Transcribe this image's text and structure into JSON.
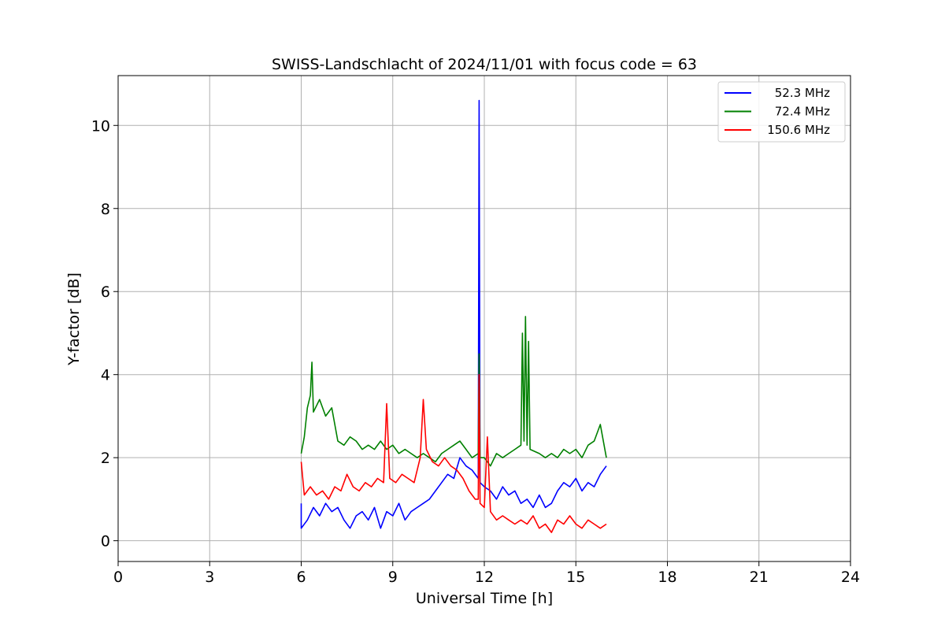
{
  "chart_data": {
    "type": "line",
    "title": "SWISS-Landschlacht of 2024/11/01 with focus code = 63",
    "xlabel": "Universal Time [h]",
    "ylabel": "Y-factor [dB]",
    "xlim": [
      0,
      24
    ],
    "ylim": [
      -0.5,
      11.2
    ],
    "xticks": [
      0,
      3,
      6,
      9,
      12,
      15,
      18,
      21,
      24
    ],
    "yticks": [
      0,
      2,
      4,
      6,
      8,
      10
    ],
    "grid": true,
    "legend_position": "top-right",
    "series": [
      {
        "name": " 52.3 MHz",
        "color": "#0000ff",
        "points": [
          [
            6.0,
            0.9
          ],
          [
            6.0,
            0.3
          ],
          [
            6.2,
            0.5
          ],
          [
            6.4,
            0.8
          ],
          [
            6.6,
            0.6
          ],
          [
            6.8,
            0.9
          ],
          [
            7.0,
            0.7
          ],
          [
            7.2,
            0.8
          ],
          [
            7.4,
            0.5
          ],
          [
            7.6,
            0.3
          ],
          [
            7.8,
            0.6
          ],
          [
            8.0,
            0.7
          ],
          [
            8.2,
            0.5
          ],
          [
            8.4,
            0.8
          ],
          [
            8.6,
            0.3
          ],
          [
            8.8,
            0.7
          ],
          [
            9.0,
            0.6
          ],
          [
            9.2,
            0.9
          ],
          [
            9.4,
            0.5
          ],
          [
            9.6,
            0.7
          ],
          [
            9.8,
            0.8
          ],
          [
            10.0,
            0.9
          ],
          [
            10.2,
            1.0
          ],
          [
            10.4,
            1.2
          ],
          [
            10.6,
            1.4
          ],
          [
            10.8,
            1.6
          ],
          [
            11.0,
            1.5
          ],
          [
            11.2,
            2.0
          ],
          [
            11.4,
            1.8
          ],
          [
            11.6,
            1.7
          ],
          [
            11.8,
            1.5
          ],
          [
            11.83,
            10.6
          ],
          [
            11.86,
            1.4
          ],
          [
            12.0,
            1.3
          ],
          [
            12.2,
            1.2
          ],
          [
            12.4,
            1.0
          ],
          [
            12.6,
            1.3
          ],
          [
            12.8,
            1.1
          ],
          [
            13.0,
            1.2
          ],
          [
            13.2,
            0.9
          ],
          [
            13.4,
            1.0
          ],
          [
            13.6,
            0.8
          ],
          [
            13.8,
            1.1
          ],
          [
            14.0,
            0.8
          ],
          [
            14.2,
            0.9
          ],
          [
            14.4,
            1.2
          ],
          [
            14.6,
            1.4
          ],
          [
            14.8,
            1.3
          ],
          [
            15.0,
            1.5
          ],
          [
            15.2,
            1.2
          ],
          [
            15.4,
            1.4
          ],
          [
            15.6,
            1.3
          ],
          [
            15.8,
            1.6
          ],
          [
            16.0,
            1.8
          ]
        ]
      },
      {
        "name": " 72.4 MHz",
        "color": "#008000",
        "points": [
          [
            6.0,
            2.1
          ],
          [
            6.1,
            2.5
          ],
          [
            6.2,
            3.2
          ],
          [
            6.3,
            3.5
          ],
          [
            6.35,
            4.3
          ],
          [
            6.4,
            3.1
          ],
          [
            6.6,
            3.4
          ],
          [
            6.8,
            3.0
          ],
          [
            7.0,
            3.2
          ],
          [
            7.2,
            2.4
          ],
          [
            7.4,
            2.3
          ],
          [
            7.6,
            2.5
          ],
          [
            7.8,
            2.4
          ],
          [
            8.0,
            2.2
          ],
          [
            8.2,
            2.3
          ],
          [
            8.4,
            2.2
          ],
          [
            8.6,
            2.4
          ],
          [
            8.8,
            2.2
          ],
          [
            9.0,
            2.3
          ],
          [
            9.2,
            2.1
          ],
          [
            9.4,
            2.2
          ],
          [
            9.6,
            2.1
          ],
          [
            9.8,
            2.0
          ],
          [
            10.0,
            2.1
          ],
          [
            10.2,
            2.0
          ],
          [
            10.4,
            1.9
          ],
          [
            10.6,
            2.1
          ],
          [
            10.8,
            2.2
          ],
          [
            11.0,
            2.3
          ],
          [
            11.2,
            2.4
          ],
          [
            11.4,
            2.2
          ],
          [
            11.6,
            2.0
          ],
          [
            11.8,
            2.1
          ],
          [
            11.83,
            4.5
          ],
          [
            11.86,
            2.0
          ],
          [
            12.0,
            2.0
          ],
          [
            12.2,
            1.8
          ],
          [
            12.4,
            2.1
          ],
          [
            12.6,
            2.0
          ],
          [
            12.8,
            2.1
          ],
          [
            13.0,
            2.2
          ],
          [
            13.2,
            2.3
          ],
          [
            13.25,
            5.0
          ],
          [
            13.3,
            2.4
          ],
          [
            13.35,
            5.4
          ],
          [
            13.4,
            2.3
          ],
          [
            13.45,
            4.8
          ],
          [
            13.5,
            2.2
          ],
          [
            13.8,
            2.1
          ],
          [
            14.0,
            2.0
          ],
          [
            14.2,
            2.1
          ],
          [
            14.4,
            2.0
          ],
          [
            14.6,
            2.2
          ],
          [
            14.8,
            2.1
          ],
          [
            15.0,
            2.2
          ],
          [
            15.2,
            2.0
          ],
          [
            15.4,
            2.3
          ],
          [
            15.6,
            2.4
          ],
          [
            15.8,
            2.8
          ],
          [
            16.0,
            2.0
          ]
        ]
      },
      {
        "name": " 150.6 MHz",
        "color": "#ff0000",
        "points": [
          [
            6.0,
            1.9
          ],
          [
            6.1,
            1.1
          ],
          [
            6.3,
            1.3
          ],
          [
            6.5,
            1.1
          ],
          [
            6.7,
            1.2
          ],
          [
            6.9,
            1.0
          ],
          [
            7.1,
            1.3
          ],
          [
            7.3,
            1.2
          ],
          [
            7.5,
            1.6
          ],
          [
            7.7,
            1.3
          ],
          [
            7.9,
            1.2
          ],
          [
            8.1,
            1.4
          ],
          [
            8.3,
            1.3
          ],
          [
            8.5,
            1.5
          ],
          [
            8.7,
            1.4
          ],
          [
            8.8,
            3.3
          ],
          [
            8.9,
            1.5
          ],
          [
            9.1,
            1.4
          ],
          [
            9.3,
            1.6
          ],
          [
            9.5,
            1.5
          ],
          [
            9.7,
            1.4
          ],
          [
            9.9,
            2.0
          ],
          [
            10.0,
            3.4
          ],
          [
            10.1,
            2.2
          ],
          [
            10.3,
            1.9
          ],
          [
            10.5,
            1.8
          ],
          [
            10.7,
            2.0
          ],
          [
            10.9,
            1.8
          ],
          [
            11.1,
            1.7
          ],
          [
            11.3,
            1.5
          ],
          [
            11.5,
            1.2
          ],
          [
            11.7,
            1.0
          ],
          [
            11.8,
            1.0
          ],
          [
            11.83,
            4.0
          ],
          [
            11.86,
            0.9
          ],
          [
            12.0,
            0.8
          ],
          [
            12.1,
            2.5
          ],
          [
            12.2,
            0.7
          ],
          [
            12.4,
            0.5
          ],
          [
            12.6,
            0.6
          ],
          [
            12.8,
            0.5
          ],
          [
            13.0,
            0.4
          ],
          [
            13.2,
            0.5
          ],
          [
            13.4,
            0.4
          ],
          [
            13.6,
            0.6
          ],
          [
            13.8,
            0.3
          ],
          [
            14.0,
            0.4
          ],
          [
            14.2,
            0.2
          ],
          [
            14.4,
            0.5
          ],
          [
            14.6,
            0.4
          ],
          [
            14.8,
            0.6
          ],
          [
            15.0,
            0.4
          ],
          [
            15.2,
            0.3
          ],
          [
            15.4,
            0.5
          ],
          [
            15.6,
            0.4
          ],
          [
            15.8,
            0.3
          ],
          [
            16.0,
            0.4
          ]
        ]
      }
    ]
  }
}
